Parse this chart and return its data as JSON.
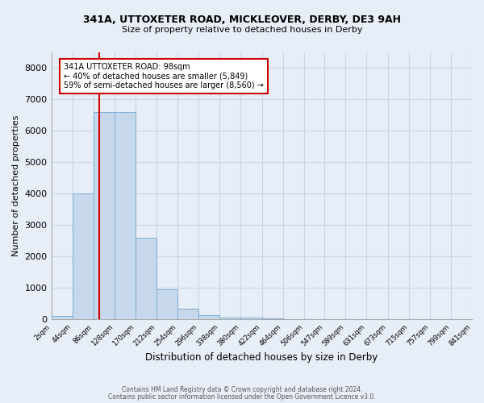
{
  "title1": "341A, UTTOXETER ROAD, MICKLEOVER, DERBY, DE3 9AH",
  "title2": "Size of property relative to detached houses in Derby",
  "xlabel": "Distribution of detached houses by size in Derby",
  "ylabel": "Number of detached properties",
  "footnote1": "Contains HM Land Registry data © Crown copyright and database right 2024.",
  "footnote2": "Contains public sector information licensed under the Open Government Licence v3.0.",
  "annotation_line1": "341A UTTOXETER ROAD: 98sqm",
  "annotation_line2": "← 40% of detached houses are smaller (5,849)",
  "annotation_line3": "59% of semi-detached houses are larger (8,560) →",
  "property_size": 98,
  "bar_color": "#c8d8ec",
  "bar_edge_color": "#7aaed4",
  "grid_color": "#c8d4e8",
  "background_color": "#e8eef8",
  "annotation_box_color": "#ffffff",
  "annotation_box_edge": "#cc0000",
  "vline_color": "#cc0000",
  "bin_edges": [
    2,
    44,
    86,
    128,
    170,
    212,
    254,
    296,
    338,
    380,
    422,
    464,
    506,
    547,
    589,
    631,
    673,
    715,
    757,
    799,
    841
  ],
  "bar_heights": [
    100,
    4000,
    6600,
    6600,
    2600,
    950,
    330,
    130,
    50,
    50,
    20,
    0,
    0,
    0,
    0,
    0,
    0,
    0,
    0,
    0
  ],
  "ylim": [
    0,
    8500
  ],
  "yticks": [
    0,
    1000,
    2000,
    3000,
    4000,
    5000,
    6000,
    7000,
    8000
  ]
}
